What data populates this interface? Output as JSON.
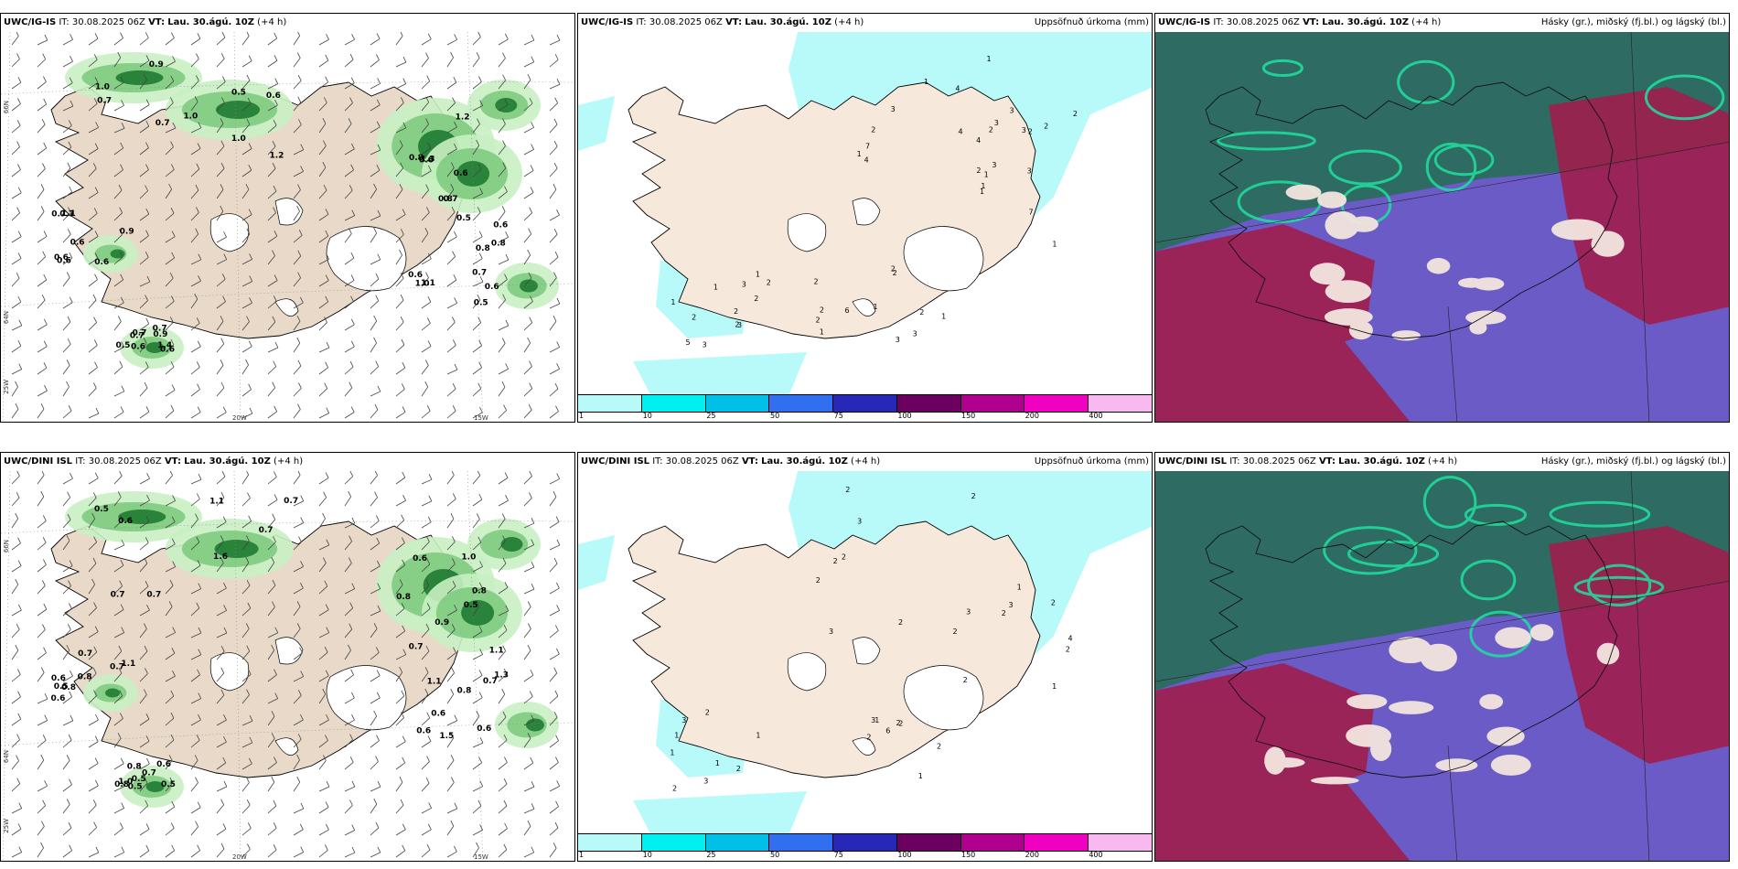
{
  "common": {
    "issue_label": "IT:",
    "issue_time": "30.08.2025 06Z",
    "valid_label": "VT:",
    "valid_time": "Lau. 30.ágú. 10Z",
    "lead": "(+4 h)",
    "precip_title": "Uppsöfnuð úrkoma (mm)",
    "cloud_title": "Hásky (gr.), miðský (fj.bl.) og lágský (bl.)"
  },
  "rows": [
    {
      "model": "UWC/IG-IS"
    },
    {
      "model": "UWC/DINI ISL"
    }
  ],
  "coords": {
    "lat66": "66N",
    "lat64": "64N",
    "lon20": "20W",
    "lon15": "15W",
    "lon25": "25W"
  },
  "colorbar": {
    "colors": [
      "#b8fafa",
      "#00f0f0",
      "#00c0e8",
      "#3070f0",
      "#2828b8",
      "#6c0060",
      "#b00090",
      "#f000c0",
      "#f8b8f0"
    ],
    "ticks": [
      "1",
      "10",
      "25",
      "50",
      "75",
      "100",
      "150",
      "200",
      "400"
    ]
  },
  "wind_labels": {
    "top": [
      "1.0",
      "0.6",
      "0.7",
      "0.7",
      "0.6",
      "0.9",
      "0.7",
      "0.6",
      "1.1",
      "0.9",
      "0.6",
      "1.2",
      "0.7",
      "0.5",
      "0.7",
      "1.0",
      "0.6",
      "0.9",
      "0.8",
      "0.7",
      "1.2",
      "1.3",
      "0.6",
      "1.0",
      "1.4",
      "0.5",
      "0.5",
      "0.6",
      "0.8",
      "0.5",
      "0.7",
      "0.8",
      "0.6",
      "0.6",
      "0.7",
      "1.0",
      "0.8",
      "1.1",
      "0.6",
      "0.6",
      "0.7",
      "0.6"
    ],
    "bottom": [
      "1.1",
      "1.0",
      "1.1",
      "1.1",
      "0.5",
      "0.5",
      "0.6",
      "0.8",
      "0.8",
      "0.8",
      "0.7",
      "0.7",
      "0.6",
      "0.6",
      "0.6",
      "0.7",
      "0.8",
      "0.6",
      "0.7",
      "0.5",
      "0.6",
      "0.5",
      "0.8",
      "1.5",
      "0.5",
      "0.7",
      "0.9",
      "0.7",
      "0.6",
      "1.0",
      "0.7",
      "0.8",
      "0.5",
      "0.6",
      "0.8",
      "1.6",
      "1.1",
      "0.7",
      "1.3",
      "0.7"
    ]
  },
  "precip_labels": {
    "top": [
      "1",
      "1",
      "2",
      "2",
      "3",
      "4",
      "5",
      "6",
      "4",
      "3",
      "3",
      "3",
      "4",
      "3",
      "2",
      "2",
      "4",
      "3",
      "1",
      "1",
      "1",
      "2",
      "2",
      "1",
      "3",
      "2",
      "2",
      "1",
      "3",
      "2",
      "3",
      "2",
      "1",
      "2",
      "1",
      "2",
      "2",
      "1",
      "1",
      "3",
      "7",
      "7",
      "3",
      "2",
      "2",
      "1",
      "2",
      "2",
      "1"
    ],
    "bottom": [
      "2",
      "2",
      "3",
      "1",
      "2",
      "3",
      "3",
      "6",
      "2",
      "3",
      "2",
      "1",
      "3",
      "2",
      "1",
      "2",
      "2",
      "1",
      "1",
      "2",
      "2",
      "2",
      "1",
      "2",
      "2",
      "4",
      "2",
      "3",
      "2",
      "2",
      "1",
      "2",
      "3",
      "1",
      "2"
    ]
  }
}
